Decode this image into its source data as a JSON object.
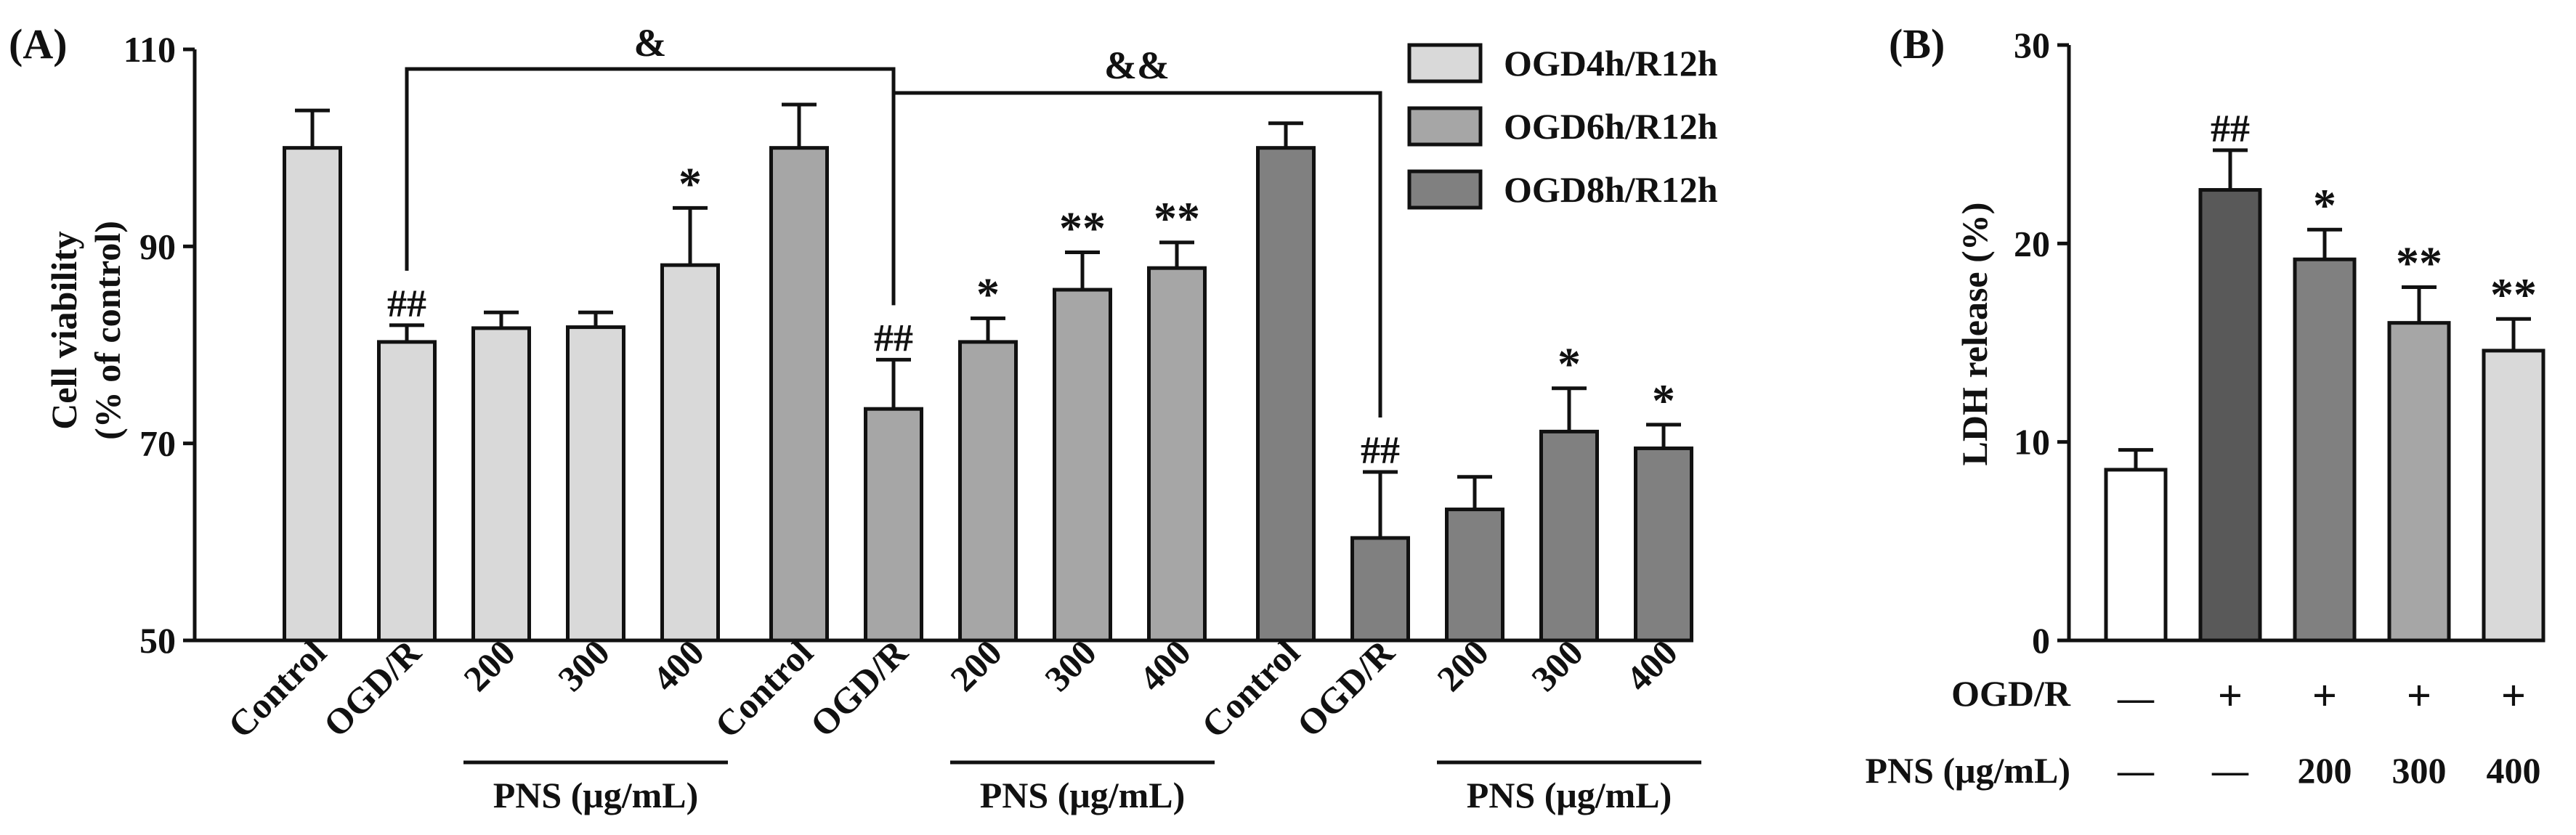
{
  "chart_data": [
    {
      "panel_label": "(A)",
      "type": "bar",
      "ylabel_line1": "Cell viability",
      "ylabel_line2": "(% of control)",
      "ylim": [
        50,
        110
      ],
      "yticks": [
        "50",
        "70",
        "90",
        "110"
      ],
      "legend_position": "top-right",
      "legend": [
        {
          "name": "OGD4h/R12h",
          "color": "#d9d9d9"
        },
        {
          "name": "OGD6h/R12h",
          "color": "#a6a6a6"
        },
        {
          "name": "OGD8h/R12h",
          "color": "#808080"
        }
      ],
      "groups": [
        {
          "series": "OGD4h/R12h",
          "color": "#d9d9d9",
          "categories": [
            "Control",
            "OGD/R",
            "200",
            "300",
            "400"
          ],
          "values": [
            100,
            80.3,
            81.7,
            81.8,
            88.1
          ],
          "errors": [
            3.8,
            1.7,
            1.6,
            1.5,
            5.8
          ],
          "annotations": [
            "",
            "##",
            "",
            "",
            "*"
          ],
          "group_label": "PNS (μg/mL)"
        },
        {
          "series": "OGD6h/R12h",
          "color": "#a6a6a6",
          "categories": [
            "Control",
            "OGD/R",
            "200",
            "300",
            "400"
          ],
          "values": [
            100,
            73.5,
            80.3,
            85.6,
            87.8
          ],
          "errors": [
            4.4,
            5.0,
            2.4,
            3.8,
            2.6
          ],
          "annotations": [
            "",
            "##",
            "*",
            "**",
            "**"
          ],
          "group_label": "PNS (μg/mL)"
        },
        {
          "series": "OGD8h/R12h",
          "color": "#808080",
          "categories": [
            "Control",
            "OGD/R",
            "200",
            "300",
            "400"
          ],
          "values": [
            100,
            60.4,
            63.3,
            71.2,
            69.5
          ],
          "errors": [
            2.5,
            6.7,
            3.3,
            4.4,
            2.4
          ],
          "annotations": [
            "",
            "##",
            "",
            "*",
            "*"
          ],
          "group_label": "PNS (μg/mL)"
        }
      ],
      "brackets": [
        "&",
        "&&"
      ]
    },
    {
      "panel_label": "(B)",
      "type": "bar",
      "ylabel": "LDH release (%)",
      "ylim": [
        0,
        30
      ],
      "yticks": [
        "0",
        "10",
        "20",
        "30"
      ],
      "values": [
        8.6,
        22.7,
        19.2,
        16.0,
        14.6
      ],
      "errors": [
        1.0,
        2.0,
        1.5,
        1.8,
        1.6
      ],
      "colors": [
        "#ffffff",
        "#595959",
        "#808080",
        "#a6a6a6",
        "#d9d9d9"
      ],
      "annotations": [
        "",
        "##",
        "*",
        "**",
        "**"
      ],
      "ogd_label": "OGD/R",
      "ogd_row": [
        "—",
        "+",
        "+",
        "+",
        "+"
      ],
      "pns_label": "PNS (μg/mL)",
      "pns_row": [
        "—",
        "—",
        "200",
        "300",
        "400"
      ]
    }
  ]
}
